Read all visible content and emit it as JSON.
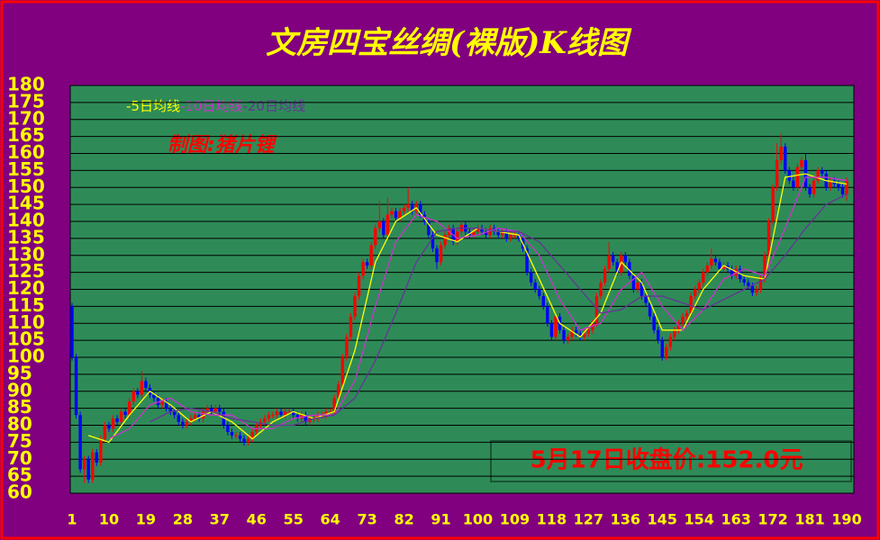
{
  "chart_data": {
    "type": "candlestick",
    "title": "文房四宝丝绸(裸版)K线图",
    "annotations": [
      "制图:猪片锂",
      "5月17日收盘价:152.0元"
    ],
    "ylim": [
      60,
      180
    ],
    "yticks": [
      60,
      65,
      70,
      75,
      80,
      85,
      90,
      95,
      100,
      105,
      110,
      115,
      120,
      125,
      130,
      135,
      140,
      145,
      150,
      155,
      160,
      165,
      170,
      175,
      180
    ],
    "xlim": [
      1,
      190
    ],
    "xticks": [
      1,
      10,
      19,
      28,
      37,
      46,
      55,
      64,
      73,
      82,
      91,
      100,
      109,
      118,
      127,
      136,
      145,
      154,
      163,
      172,
      181,
      190
    ],
    "grid": true,
    "up_color": "#ff0000",
    "down_color": "#0000ff",
    "open": [
      115,
      100,
      83,
      67,
      70,
      64,
      72,
      69,
      76,
      80,
      79,
      82,
      81,
      84,
      83,
      87,
      90,
      89,
      93,
      91,
      89,
      88,
      86,
      87,
      85,
      84,
      83,
      81,
      80,
      81,
      82,
      83,
      82,
      84,
      85,
      84,
      85,
      84,
      80,
      78,
      77,
      77,
      76,
      75,
      76,
      78,
      80,
      81,
      82,
      83,
      83,
      84,
      83,
      84,
      84,
      83,
      82,
      83,
      81,
      82,
      82,
      83,
      83,
      84,
      84,
      88,
      92,
      100,
      106,
      112,
      118,
      124,
      128,
      127,
      133,
      138,
      140,
      136,
      142,
      143,
      141,
      143,
      144,
      145,
      143,
      145,
      142,
      140,
      136,
      132,
      128,
      133,
      136,
      138,
      134,
      137,
      139,
      137,
      136,
      137,
      138,
      137,
      136,
      138,
      137,
      136,
      137,
      135,
      136,
      136,
      135,
      132,
      125,
      122,
      120,
      118,
      115,
      110,
      106,
      112,
      108,
      105,
      106,
      108,
      107,
      106,
      107,
      108,
      110,
      118,
      122,
      126,
      130,
      128,
      125,
      130,
      128,
      124,
      120,
      122,
      118,
      116,
      112,
      108,
      105,
      100,
      103,
      106,
      108,
      110,
      112,
      113,
      118,
      120,
      122,
      125,
      127,
      129,
      128,
      126,
      127,
      126,
      124,
      126,
      123,
      122,
      121,
      119,
      120,
      123,
      130,
      140,
      150,
      158,
      162,
      155,
      152,
      150,
      156,
      158,
      150,
      148,
      152,
      155,
      154,
      150,
      152,
      151,
      150,
      148
    ],
    "high": [
      116,
      101,
      84,
      71,
      71,
      73,
      73,
      77,
      81,
      81,
      83,
      83,
      85,
      85,
      88,
      91,
      91,
      96,
      94,
      92,
      90,
      89,
      88,
      88,
      86,
      85,
      84,
      82,
      82,
      83,
      84,
      84,
      85,
      86,
      86,
      86,
      86,
      85,
      81,
      79,
      78,
      78,
      77,
      77,
      79,
      81,
      82,
      83,
      84,
      84,
      85,
      85,
      85,
      85,
      85,
      84,
      84,
      84,
      83,
      83,
      84,
      84,
      85,
      85,
      89,
      93,
      101,
      107,
      113,
      119,
      125,
      129,
      129,
      134,
      139,
      146,
      141,
      147,
      144,
      144,
      144,
      145,
      150,
      146,
      146,
      146,
      143,
      141,
      137,
      133,
      134,
      137,
      139,
      139,
      138,
      140,
      140,
      138,
      138,
      139,
      139,
      138,
      139,
      139,
      138,
      138,
      138,
      137,
      137,
      137,
      136,
      133,
      126,
      123,
      121,
      119,
      116,
      111,
      113,
      113,
      109,
      107,
      109,
      109,
      108,
      108,
      109,
      111,
      119,
      123,
      127,
      134,
      131,
      129,
      131,
      131,
      129,
      125,
      123,
      123,
      119,
      117,
      113,
      109,
      106,
      104,
      107,
      109,
      111,
      113,
      114,
      119,
      121,
      123,
      126,
      128,
      132,
      130,
      129,
      128,
      128,
      127,
      127,
      127,
      124,
      123,
      122,
      121,
      124,
      131,
      141,
      151,
      163,
      166,
      163,
      156,
      153,
      157,
      159,
      160,
      151,
      153,
      156,
      156,
      155,
      153,
      153,
      152,
      151,
      153
    ],
    "low": [
      99,
      82,
      66,
      63,
      63,
      63,
      68,
      68,
      75,
      78,
      78,
      80,
      80,
      82,
      82,
      86,
      88,
      88,
      90,
      88,
      87,
      85,
      85,
      84,
      83,
      82,
      80,
      79,
      79,
      80,
      81,
      81,
      81,
      83,
      83,
      83,
      83,
      79,
      77,
      76,
      76,
      75,
      74,
      74,
      75,
      77,
      79,
      80,
      81,
      82,
      82,
      82,
      82,
      83,
      82,
      81,
      81,
      80,
      80,
      81,
      81,
      82,
      82,
      83,
      83,
      87,
      91,
      99,
      105,
      111,
      117,
      123,
      126,
      126,
      132,
      137,
      135,
      135,
      141,
      140,
      140,
      142,
      143,
      142,
      142,
      141,
      139,
      135,
      131,
      126,
      127,
      132,
      135,
      133,
      133,
      136,
      136,
      135,
      135,
      136,
      136,
      135,
      135,
      136,
      135,
      135,
      134,
      134,
      135,
      134,
      131,
      124,
      121,
      119,
      117,
      114,
      109,
      105,
      105,
      107,
      104,
      104,
      105,
      106,
      105,
      105,
      106,
      107,
      109,
      117,
      121,
      125,
      127,
      124,
      124,
      127,
      123,
      119,
      119,
      117,
      115,
      111,
      107,
      104,
      99,
      99,
      102,
      105,
      107,
      109,
      111,
      112,
      117,
      119,
      121,
      124,
      126,
      127,
      125,
      125,
      125,
      123,
      123,
      122,
      121,
      120,
      118,
      118,
      119,
      122,
      129,
      139,
      149,
      157,
      154,
      151,
      149,
      149,
      155,
      149,
      147,
      147,
      151,
      153,
      149,
      149,
      150,
      149,
      147,
      146
    ],
    "close": [
      100,
      83,
      67,
      70,
      64,
      72,
      69,
      76,
      80,
      79,
      82,
      81,
      84,
      83,
      87,
      90,
      89,
      93,
      91,
      89,
      88,
      86,
      87,
      85,
      84,
      83,
      81,
      80,
      81,
      82,
      83,
      82,
      84,
      85,
      84,
      85,
      84,
      80,
      78,
      77,
      77,
      76,
      75,
      76,
      78,
      80,
      81,
      82,
      83,
      83,
      84,
      83,
      84,
      84,
      83,
      82,
      83,
      81,
      82,
      82,
      83,
      83,
      84,
      84,
      88,
      92,
      100,
      106,
      112,
      118,
      124,
      128,
      127,
      133,
      138,
      140,
      136,
      142,
      143,
      141,
      143,
      144,
      145,
      143,
      145,
      142,
      140,
      136,
      132,
      128,
      133,
      136,
      138,
      134,
      137,
      139,
      137,
      136,
      137,
      138,
      137,
      136,
      138,
      137,
      136,
      137,
      135,
      136,
      136,
      135,
      132,
      125,
      122,
      120,
      118,
      115,
      110,
      106,
      112,
      108,
      105,
      106,
      108,
      107,
      106,
      107,
      108,
      110,
      118,
      122,
      126,
      130,
      128,
      125,
      130,
      128,
      124,
      120,
      122,
      118,
      116,
      112,
      108,
      105,
      100,
      103,
      106,
      108,
      110,
      112,
      113,
      118,
      120,
      122,
      125,
      127,
      129,
      128,
      126,
      127,
      126,
      124,
      126,
      123,
      122,
      121,
      119,
      120,
      123,
      130,
      140,
      150,
      158,
      162,
      155,
      152,
      150,
      156,
      158,
      150,
      148,
      152,
      155,
      154,
      150,
      152,
      151,
      150,
      148,
      152
    ],
    "lines": [
      {
        "name": "-5日均线",
        "color": "#ffff00",
        "x": [
          5,
          10,
          15,
          20,
          25,
          30,
          35,
          40,
          45,
          50,
          55,
          60,
          65,
          70,
          75,
          80,
          85,
          90,
          95,
          100,
          105,
          110,
          115,
          120,
          125,
          130,
          135,
          140,
          145,
          150,
          155,
          160,
          165,
          170,
          175,
          180,
          185,
          190
        ],
        "values": [
          77,
          75,
          83,
          90,
          86,
          81,
          84,
          81,
          76,
          81,
          84,
          82,
          84,
          102,
          128,
          140,
          144,
          136,
          134,
          138,
          137,
          136,
          123,
          110,
          106,
          113,
          128,
          122,
          108,
          108,
          120,
          127,
          124,
          123,
          153,
          154,
          152,
          151
        ]
      },
      {
        "name": "-10日均线",
        "color": "#cc33cc",
        "x": [
          10,
          15,
          20,
          25,
          30,
          35,
          40,
          45,
          50,
          55,
          60,
          65,
          70,
          75,
          80,
          85,
          90,
          95,
          100,
          105,
          110,
          115,
          120,
          125,
          130,
          135,
          140,
          145,
          150,
          155,
          160,
          165,
          170,
          175,
          180,
          185,
          190
        ],
        "values": [
          76,
          79,
          86,
          88,
          84,
          83,
          83,
          79,
          79,
          82,
          83,
          83,
          93,
          115,
          134,
          142,
          140,
          135,
          136,
          138,
          137,
          130,
          117,
          108,
          110,
          120,
          125,
          115,
          108,
          114,
          123,
          126,
          124,
          138,
          153,
          153,
          152
        ]
      },
      {
        "name": "-20日均线",
        "color": "#663399",
        "x": [
          20,
          25,
          30,
          35,
          40,
          45,
          50,
          55,
          60,
          65,
          70,
          75,
          80,
          85,
          90,
          95,
          100,
          105,
          110,
          115,
          120,
          125,
          130,
          135,
          140,
          145,
          150,
          155,
          160,
          165,
          170,
          175,
          180,
          185,
          190
        ],
        "values": [
          81,
          84,
          85,
          84,
          82,
          81,
          80,
          80,
          82,
          83,
          88,
          99,
          113,
          128,
          137,
          138,
          138,
          137,
          137,
          134,
          127,
          120,
          113,
          114,
          118,
          118,
          116,
          114,
          117,
          120,
          123,
          130,
          138,
          145,
          148
        ]
      }
    ]
  }
}
